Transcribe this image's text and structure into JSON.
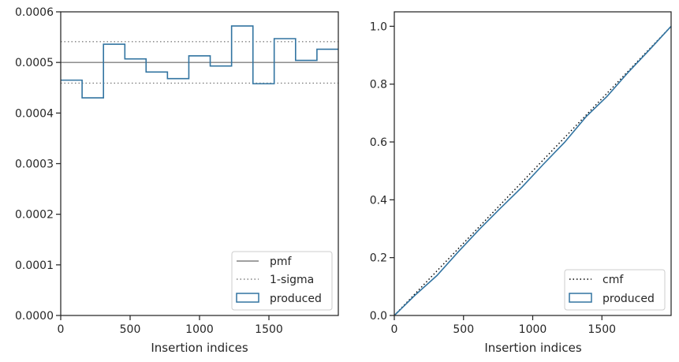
{
  "colors": {
    "produced": "#3274a1",
    "pmf": "#808080",
    "sigma": "#808080",
    "cmf": "#000000",
    "axes": "#262626"
  },
  "chart_data": [
    {
      "type": "line",
      "title": "",
      "xlabel": "Insertion indices",
      "ylabel": "",
      "xlim": [
        0,
        2000
      ],
      "ylim": [
        0,
        0.0006
      ],
      "x_ticks": [
        0,
        500,
        1000,
        1500
      ],
      "x_tick_labels": [
        "0",
        "500",
        "1000",
        "1500"
      ],
      "y_ticks": [
        0,
        0.0001,
        0.0002,
        0.0003,
        0.0004,
        0.0005,
        0.0006
      ],
      "y_tick_labels": [
        "0.0000",
        "0.0001",
        "0.0002",
        "0.0003",
        "0.0004",
        "0.0005",
        "0.0006"
      ],
      "grid": false,
      "legend_position": "lower-right",
      "legend": [
        "pmf",
        "1-sigma",
        "produced"
      ],
      "series": [
        {
          "name": "pmf",
          "style": "solid",
          "x": [
            0,
            2000
          ],
          "y": [
            0.0005,
            0.0005
          ]
        },
        {
          "name": "1-sigma",
          "style": "dotted",
          "x": [
            0,
            2000
          ],
          "y": [
            0.000541,
            0.000541
          ]
        },
        {
          "name": "1-sigma",
          "style": "dotted",
          "x": [
            0,
            2000
          ],
          "y": [
            0.000459,
            0.000459
          ]
        },
        {
          "name": "produced",
          "style": "step",
          "bin_edges": [
            0,
            154,
            308,
            462,
            615,
            769,
            923,
            1077,
            1231,
            1385,
            1538,
            1692,
            1846,
            2000
          ],
          "values": [
            0.000465,
            0.00043,
            0.000536,
            0.000507,
            0.000481,
            0.000468,
            0.000513,
            0.000493,
            0.000572,
            0.000458,
            0.000547,
            0.000504,
            0.000526
          ]
        }
      ]
    },
    {
      "type": "line",
      "title": "",
      "xlabel": "Insertion indices",
      "ylabel": "",
      "xlim": [
        0,
        2000
      ],
      "ylim": [
        0,
        1.05
      ],
      "x_ticks": [
        0,
        500,
        1000,
        1500
      ],
      "x_tick_labels": [
        "0",
        "500",
        "1000",
        "1500"
      ],
      "y_ticks": [
        0,
        0.2,
        0.4,
        0.6,
        0.8,
        1.0
      ],
      "y_tick_labels": [
        "0.0",
        "0.2",
        "0.4",
        "0.6",
        "0.8",
        "1.0"
      ],
      "grid": false,
      "legend_position": "lower-right",
      "legend": [
        "cmf",
        "produced"
      ],
      "series": [
        {
          "name": "cmf",
          "style": "dotted",
          "x": [
            0,
            2000
          ],
          "y": [
            0,
            1.0
          ]
        },
        {
          "name": "produced",
          "style": "solid",
          "x": [
            0,
            154,
            308,
            462,
            615,
            769,
            923,
            1077,
            1231,
            1385,
            1538,
            1692,
            1846,
            2000
          ],
          "y": [
            0,
            0.072,
            0.138,
            0.22,
            0.298,
            0.372,
            0.444,
            0.523,
            0.599,
            0.687,
            0.758,
            0.842,
            0.92,
            1.0
          ]
        }
      ]
    }
  ]
}
